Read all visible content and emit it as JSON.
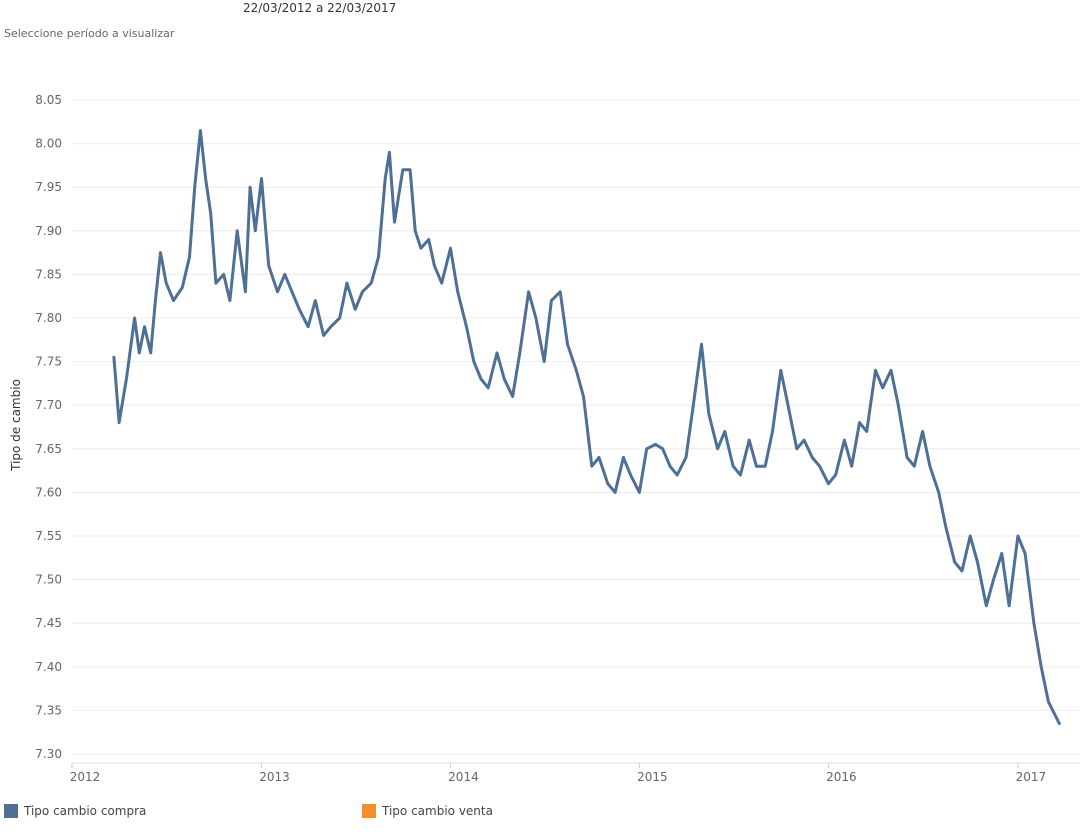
{
  "header": {
    "date_range": "22/03/2012 a 22/03/2017",
    "period_prompt": "Seleccione período a visualizar"
  },
  "legend": [
    {
      "label": "Tipo cambio compra",
      "color": "#4e6f96"
    },
    {
      "label": "Tipo cambio venta",
      "color": "#f28e2b"
    }
  ],
  "chart_data": {
    "type": "line",
    "title": "",
    "xlabel": "",
    "ylabel": "Tipo de cambio",
    "ylim": [
      7.3,
      8.05
    ],
    "xlim": [
      "2012-01-01",
      "2017-05-01"
    ],
    "grid": "horizontal",
    "legend_position": "bottom-left",
    "y_ticks": [
      "8.05",
      "8.00",
      "7.95",
      "7.90",
      "7.85",
      "7.80",
      "7.75",
      "7.70",
      "7.65",
      "7.60",
      "7.55",
      "7.50",
      "7.45",
      "7.40",
      "7.35",
      "7.30"
    ],
    "x_ticks": [
      "2012",
      "2013",
      "2014",
      "2015",
      "2016",
      "2017"
    ],
    "series": [
      {
        "name": "Tipo cambio compra",
        "color": "#4e6f96",
        "x": [
          "2012-03-22",
          "2012-04-01",
          "2012-04-15",
          "2012-05-01",
          "2012-05-10",
          "2012-05-20",
          "2012-06-01",
          "2012-06-10",
          "2012-06-20",
          "2012-07-01",
          "2012-07-15",
          "2012-08-01",
          "2012-08-15",
          "2012-08-25",
          "2012-09-05",
          "2012-09-15",
          "2012-09-25",
          "2012-10-05",
          "2012-10-20",
          "2012-11-01",
          "2012-11-15",
          "2012-12-01",
          "2012-12-10",
          "2012-12-20",
          "2013-01-01",
          "2013-01-15",
          "2013-02-01",
          "2013-02-15",
          "2013-03-01",
          "2013-03-15",
          "2013-04-01",
          "2013-04-15",
          "2013-05-01",
          "2013-05-15",
          "2013-06-01",
          "2013-06-15",
          "2013-07-01",
          "2013-07-15",
          "2013-08-01",
          "2013-08-15",
          "2013-08-28",
          "2013-09-05",
          "2013-09-15",
          "2013-10-01",
          "2013-10-15",
          "2013-10-25",
          "2013-11-05",
          "2013-11-20",
          "2013-12-01",
          "2013-12-15",
          "2014-01-01",
          "2014-01-15",
          "2014-02-01",
          "2014-02-15",
          "2014-03-01",
          "2014-03-15",
          "2014-04-01",
          "2014-04-15",
          "2014-05-01",
          "2014-05-15",
          "2014-06-01",
          "2014-06-15",
          "2014-07-01",
          "2014-07-15",
          "2014-08-01",
          "2014-08-15",
          "2014-09-01",
          "2014-09-15",
          "2014-10-01",
          "2014-10-15",
          "2014-11-01",
          "2014-11-15",
          "2014-12-01",
          "2014-12-15",
          "2015-01-01",
          "2015-01-15",
          "2015-02-01",
          "2015-02-15",
          "2015-03-01",
          "2015-03-15",
          "2015-04-01",
          "2015-04-15",
          "2015-05-01",
          "2015-05-15",
          "2015-06-01",
          "2015-06-15",
          "2015-07-01",
          "2015-07-15",
          "2015-08-01",
          "2015-08-15",
          "2015-09-01",
          "2015-09-15",
          "2015-10-01",
          "2015-10-15",
          "2015-11-01",
          "2015-11-15",
          "2015-12-01",
          "2015-12-15",
          "2016-01-01",
          "2016-01-15",
          "2016-02-01",
          "2016-02-15",
          "2016-03-01",
          "2016-03-15",
          "2016-04-01",
          "2016-04-15",
          "2016-05-01",
          "2016-05-15",
          "2016-06-01",
          "2016-06-15",
          "2016-07-01",
          "2016-07-15",
          "2016-08-01",
          "2016-08-15",
          "2016-09-01",
          "2016-09-15",
          "2016-10-01",
          "2016-10-15",
          "2016-11-01",
          "2016-11-15",
          "2016-12-01",
          "2016-12-15",
          "2017-01-01",
          "2017-01-15",
          "2017-02-01",
          "2017-02-15",
          "2017-03-01",
          "2017-03-22"
        ],
        "values": [
          7.755,
          7.68,
          7.73,
          7.8,
          7.76,
          7.79,
          7.76,
          7.82,
          7.875,
          7.84,
          7.82,
          7.835,
          7.87,
          7.95,
          8.015,
          7.96,
          7.92,
          7.84,
          7.85,
          7.82,
          7.9,
          7.83,
          7.95,
          7.9,
          7.96,
          7.86,
          7.83,
          7.85,
          7.83,
          7.81,
          7.79,
          7.82,
          7.78,
          7.79,
          7.8,
          7.84,
          7.81,
          7.83,
          7.84,
          7.87,
          7.96,
          7.99,
          7.91,
          7.97,
          7.97,
          7.9,
          7.88,
          7.89,
          7.86,
          7.84,
          7.88,
          7.83,
          7.79,
          7.75,
          7.73,
          7.72,
          7.76,
          7.73,
          7.71,
          7.76,
          7.83,
          7.8,
          7.75,
          7.82,
          7.83,
          7.77,
          7.74,
          7.71,
          7.63,
          7.64,
          7.61,
          7.6,
          7.64,
          7.62,
          7.6,
          7.65,
          7.655,
          7.65,
          7.63,
          7.62,
          7.64,
          7.7,
          7.77,
          7.69,
          7.65,
          7.67,
          7.63,
          7.62,
          7.66,
          7.63,
          7.63,
          7.67,
          7.74,
          7.7,
          7.65,
          7.66,
          7.64,
          7.63,
          7.61,
          7.62,
          7.66,
          7.63,
          7.68,
          7.67,
          7.74,
          7.72,
          7.74,
          7.7,
          7.64,
          7.63,
          7.67,
          7.63,
          7.6,
          7.56,
          7.52,
          7.51,
          7.55,
          7.52,
          7.47,
          7.5,
          7.53,
          7.47,
          7.55,
          7.53,
          7.45,
          7.4,
          7.36,
          7.335
        ]
      },
      {
        "name": "Tipo cambio venta",
        "color": "#f28e2b",
        "x": [],
        "values": []
      }
    ]
  }
}
